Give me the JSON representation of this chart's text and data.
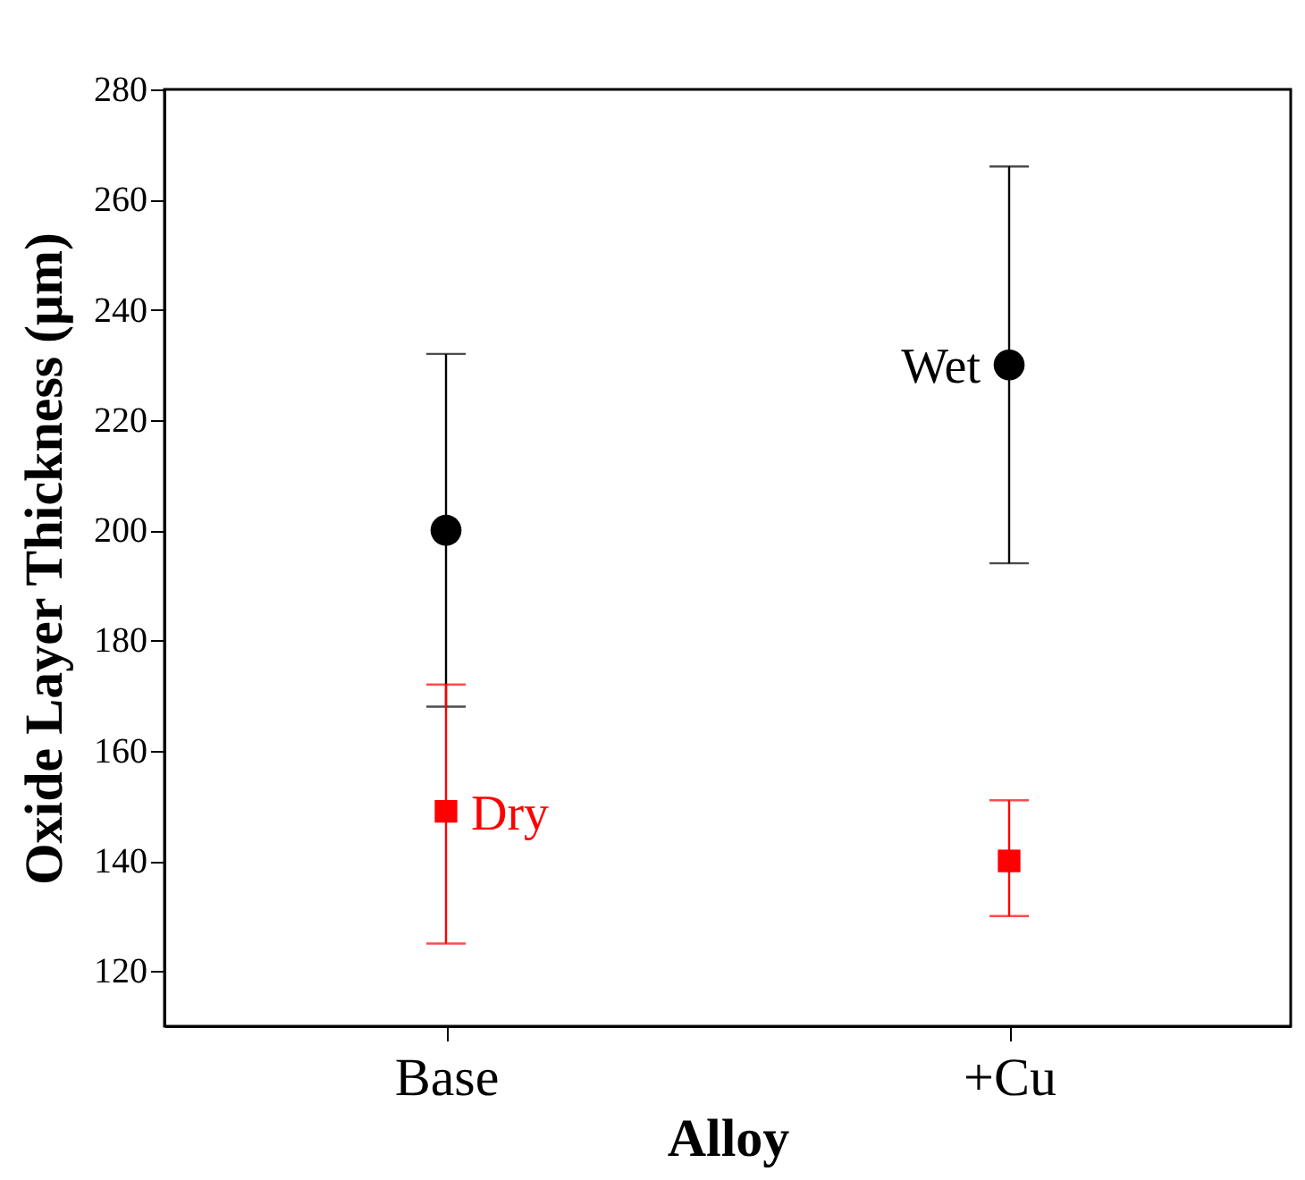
{
  "chart_data": {
    "type": "scatter",
    "xlabel": "Alloy",
    "ylabel": "Oxide Layer Thickness (μm)",
    "categories": [
      "Base",
      "+Cu"
    ],
    "ylim": [
      110,
      280
    ],
    "yticks": [
      120,
      140,
      160,
      180,
      200,
      220,
      240,
      260,
      280
    ],
    "grid": false,
    "series": [
      {
        "name": "Wet",
        "color": "#000000",
        "marker": "circle",
        "values": [
          200,
          230
        ],
        "errors": [
          [
            168,
            232
          ],
          [
            194,
            266
          ]
        ]
      },
      {
        "name": "Dry",
        "color": "#ff0000",
        "marker": "square",
        "values": [
          149,
          140
        ],
        "errors": [
          [
            125,
            172
          ],
          [
            130,
            151
          ]
        ]
      }
    ]
  }
}
